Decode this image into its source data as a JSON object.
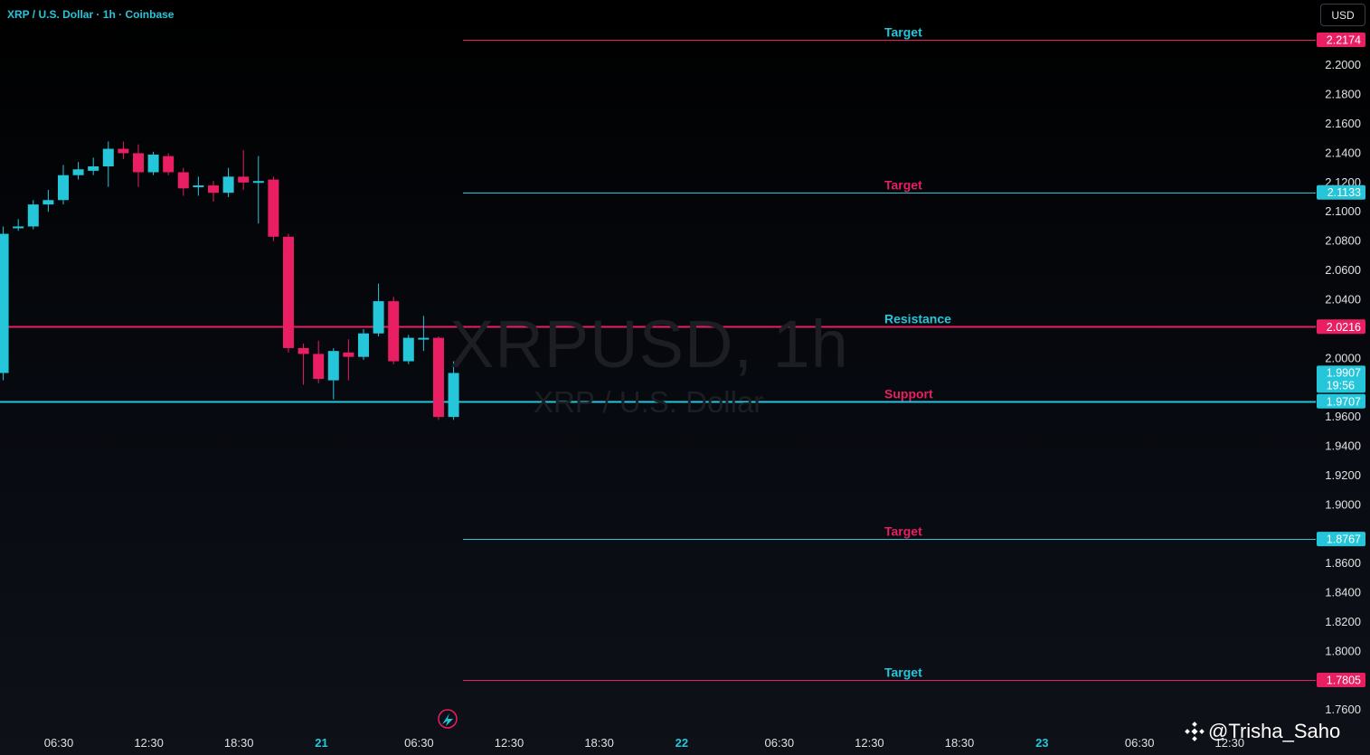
{
  "header": {
    "title": "XRP / U.S. Dollar · 1h · Coinbase"
  },
  "toolbar": {
    "currency_label": "USD"
  },
  "watermark": {
    "symbol": "XRPUSD, 1h",
    "description": "XRP / U.S. Dollar"
  },
  "credit": {
    "handle": "@Trisha_Saho"
  },
  "colors": {
    "bull": "#26c6da",
    "bear": "#e91e63",
    "background": "#000000",
    "axis_text": "#e0e0e0"
  },
  "chart_data": {
    "type": "candlestick",
    "symbol": "XRPUSD",
    "interval": "1h",
    "exchange": "Coinbase",
    "y_axis": {
      "position": "right",
      "range": [
        1.75,
        2.23
      ],
      "ticks": [
        "2.2000",
        "2.1800",
        "2.1600",
        "2.1400",
        "2.1200",
        "2.1000",
        "2.0800",
        "2.0600",
        "2.0400",
        "2.0000",
        "1.9600",
        "1.9400",
        "1.9200",
        "1.9000",
        "1.8600",
        "1.8400",
        "1.8200",
        "1.8000",
        "1.7600"
      ]
    },
    "x_axis": {
      "labels": [
        {
          "text": "06:30",
          "h": 0
        },
        {
          "text": "12:30",
          "h": 6
        },
        {
          "text": "18:30",
          "h": 12
        },
        {
          "text": "21",
          "h": 17.5,
          "bold": true
        },
        {
          "text": "06:30",
          "h": 24
        },
        {
          "text": "12:30",
          "h": 30
        },
        {
          "text": "18:30",
          "h": 36
        },
        {
          "text": "22",
          "h": 41.5,
          "bold": true
        },
        {
          "text": "06:30",
          "h": 48
        },
        {
          "text": "12:30",
          "h": 54
        },
        {
          "text": "18:30",
          "h": 60
        },
        {
          "text": "23",
          "h": 65.5,
          "bold": true
        },
        {
          "text": "06:30",
          "h": 72
        },
        {
          "text": "12:30",
          "h": 78
        }
      ]
    },
    "candles": [
      {
        "h": -3.7,
        "o": 1.99,
        "c": 2.085,
        "hi": 2.09,
        "lo": 1.985
      },
      {
        "h": -2.7,
        "o": 2.089,
        "c": 2.09,
        "hi": 2.095,
        "lo": 2.087
      },
      {
        "h": -1.7,
        "o": 2.09,
        "c": 2.105,
        "hi": 2.108,
        "lo": 2.088
      },
      {
        "h": -0.7,
        "o": 2.105,
        "c": 2.108,
        "hi": 2.115,
        "lo": 2.1
      },
      {
        "h": 0.3,
        "o": 2.108,
        "c": 2.125,
        "hi": 2.132,
        "lo": 2.105
      },
      {
        "h": 1.3,
        "o": 2.125,
        "c": 2.129,
        "hi": 2.134,
        "lo": 2.122
      },
      {
        "h": 2.3,
        "o": 2.128,
        "c": 2.131,
        "hi": 2.137,
        "lo": 2.125
      },
      {
        "h": 3.3,
        "o": 2.131,
        "c": 2.143,
        "hi": 2.148,
        "lo": 2.117
      },
      {
        "h": 4.3,
        "o": 2.143,
        "c": 2.14,
        "hi": 2.148,
        "lo": 2.136
      },
      {
        "h": 5.3,
        "o": 2.14,
        "c": 2.127,
        "hi": 2.146,
        "lo": 2.117
      },
      {
        "h": 6.3,
        "o": 2.127,
        "c": 2.139,
        "hi": 2.141,
        "lo": 2.125
      },
      {
        "h": 7.3,
        "o": 2.138,
        "c": 2.127,
        "hi": 2.14,
        "lo": 2.125
      },
      {
        "h": 8.3,
        "o": 2.127,
        "c": 2.116,
        "hi": 2.13,
        "lo": 2.111
      },
      {
        "h": 9.3,
        "o": 2.117,
        "c": 2.118,
        "hi": 2.124,
        "lo": 2.111
      },
      {
        "h": 10.3,
        "o": 2.118,
        "c": 2.113,
        "hi": 2.121,
        "lo": 2.107
      },
      {
        "h": 11.3,
        "o": 2.113,
        "c": 2.124,
        "hi": 2.13,
        "lo": 2.11
      },
      {
        "h": 12.3,
        "o": 2.124,
        "c": 2.12,
        "hi": 2.142,
        "lo": 2.115
      },
      {
        "h": 13.3,
        "o": 2.12,
        "c": 2.121,
        "hi": 2.138,
        "lo": 2.092
      },
      {
        "h": 14.3,
        "o": 2.122,
        "c": 2.083,
        "hi": 2.124,
        "lo": 2.08
      },
      {
        "h": 15.3,
        "o": 2.083,
        "c": 2.007,
        "hi": 2.085,
        "lo": 2.004
      },
      {
        "h": 16.3,
        "o": 2.007,
        "c": 2.003,
        "hi": 2.01,
        "lo": 1.982
      },
      {
        "h": 17.3,
        "o": 2.003,
        "c": 1.986,
        "hi": 2.012,
        "lo": 1.983
      },
      {
        "h": 18.3,
        "o": 1.985,
        "c": 2.005,
        "hi": 2.007,
        "lo": 1.972
      },
      {
        "h": 19.3,
        "o": 2.004,
        "c": 2.001,
        "hi": 2.013,
        "lo": 1.985
      },
      {
        "h": 20.3,
        "o": 2.001,
        "c": 2.017,
        "hi": 2.02,
        "lo": 1.999
      },
      {
        "h": 21.3,
        "o": 2.017,
        "c": 2.039,
        "hi": 2.051,
        "lo": 2.015
      },
      {
        "h": 22.3,
        "o": 2.039,
        "c": 1.998,
        "hi": 2.042,
        "lo": 1.996
      },
      {
        "h": 23.3,
        "o": 1.998,
        "c": 2.014,
        "hi": 2.016,
        "lo": 1.996
      },
      {
        "h": 24.3,
        "o": 2.013,
        "c": 2.014,
        "hi": 2.029,
        "lo": 2.005
      },
      {
        "h": 25.3,
        "o": 2.014,
        "c": 1.96,
        "hi": 2.015,
        "lo": 1.958
      },
      {
        "h": 26.3,
        "o": 1.96,
        "c": 1.99,
        "hi": 1.998,
        "lo": 1.958
      }
    ],
    "levels": [
      {
        "label": "Target",
        "price_label": "2.2174",
        "value": 2.2174,
        "line_color": "#e91e63",
        "label_color": "#26c6da",
        "tag_color": "#e91e63",
        "full_width": false
      },
      {
        "label": "Target",
        "price_label": "2.1133",
        "value": 2.1133,
        "line_color": "#26c6da",
        "label_color": "#e91e63",
        "tag_color": "#26c6da",
        "full_width": false
      },
      {
        "label": "Resistance",
        "price_label": "2.0216",
        "value": 2.0216,
        "line_color": "#e91e63",
        "label_color": "#26c6da",
        "tag_color": "#e91e63",
        "full_width": true
      },
      {
        "label": "Support",
        "price_label": "1.9707",
        "value": 1.9707,
        "line_color": "#26c6da",
        "label_color": "#e91e63",
        "tag_color": "#26c6da",
        "full_width": true
      },
      {
        "label": "Target",
        "price_label": "1.8767",
        "value": 1.8767,
        "line_color": "#26c6da",
        "label_color": "#e91e63",
        "tag_color": "#26c6da",
        "full_width": false
      },
      {
        "label": "Target",
        "price_label": "1.7805",
        "value": 1.7805,
        "line_color": "#e91e63",
        "label_color": "#26c6da",
        "tag_color": "#e91e63",
        "full_width": false
      }
    ],
    "last_price": {
      "value": 1.9907,
      "price_label": "1.9907",
      "countdown": "19:56",
      "color": "#26c6da"
    }
  }
}
